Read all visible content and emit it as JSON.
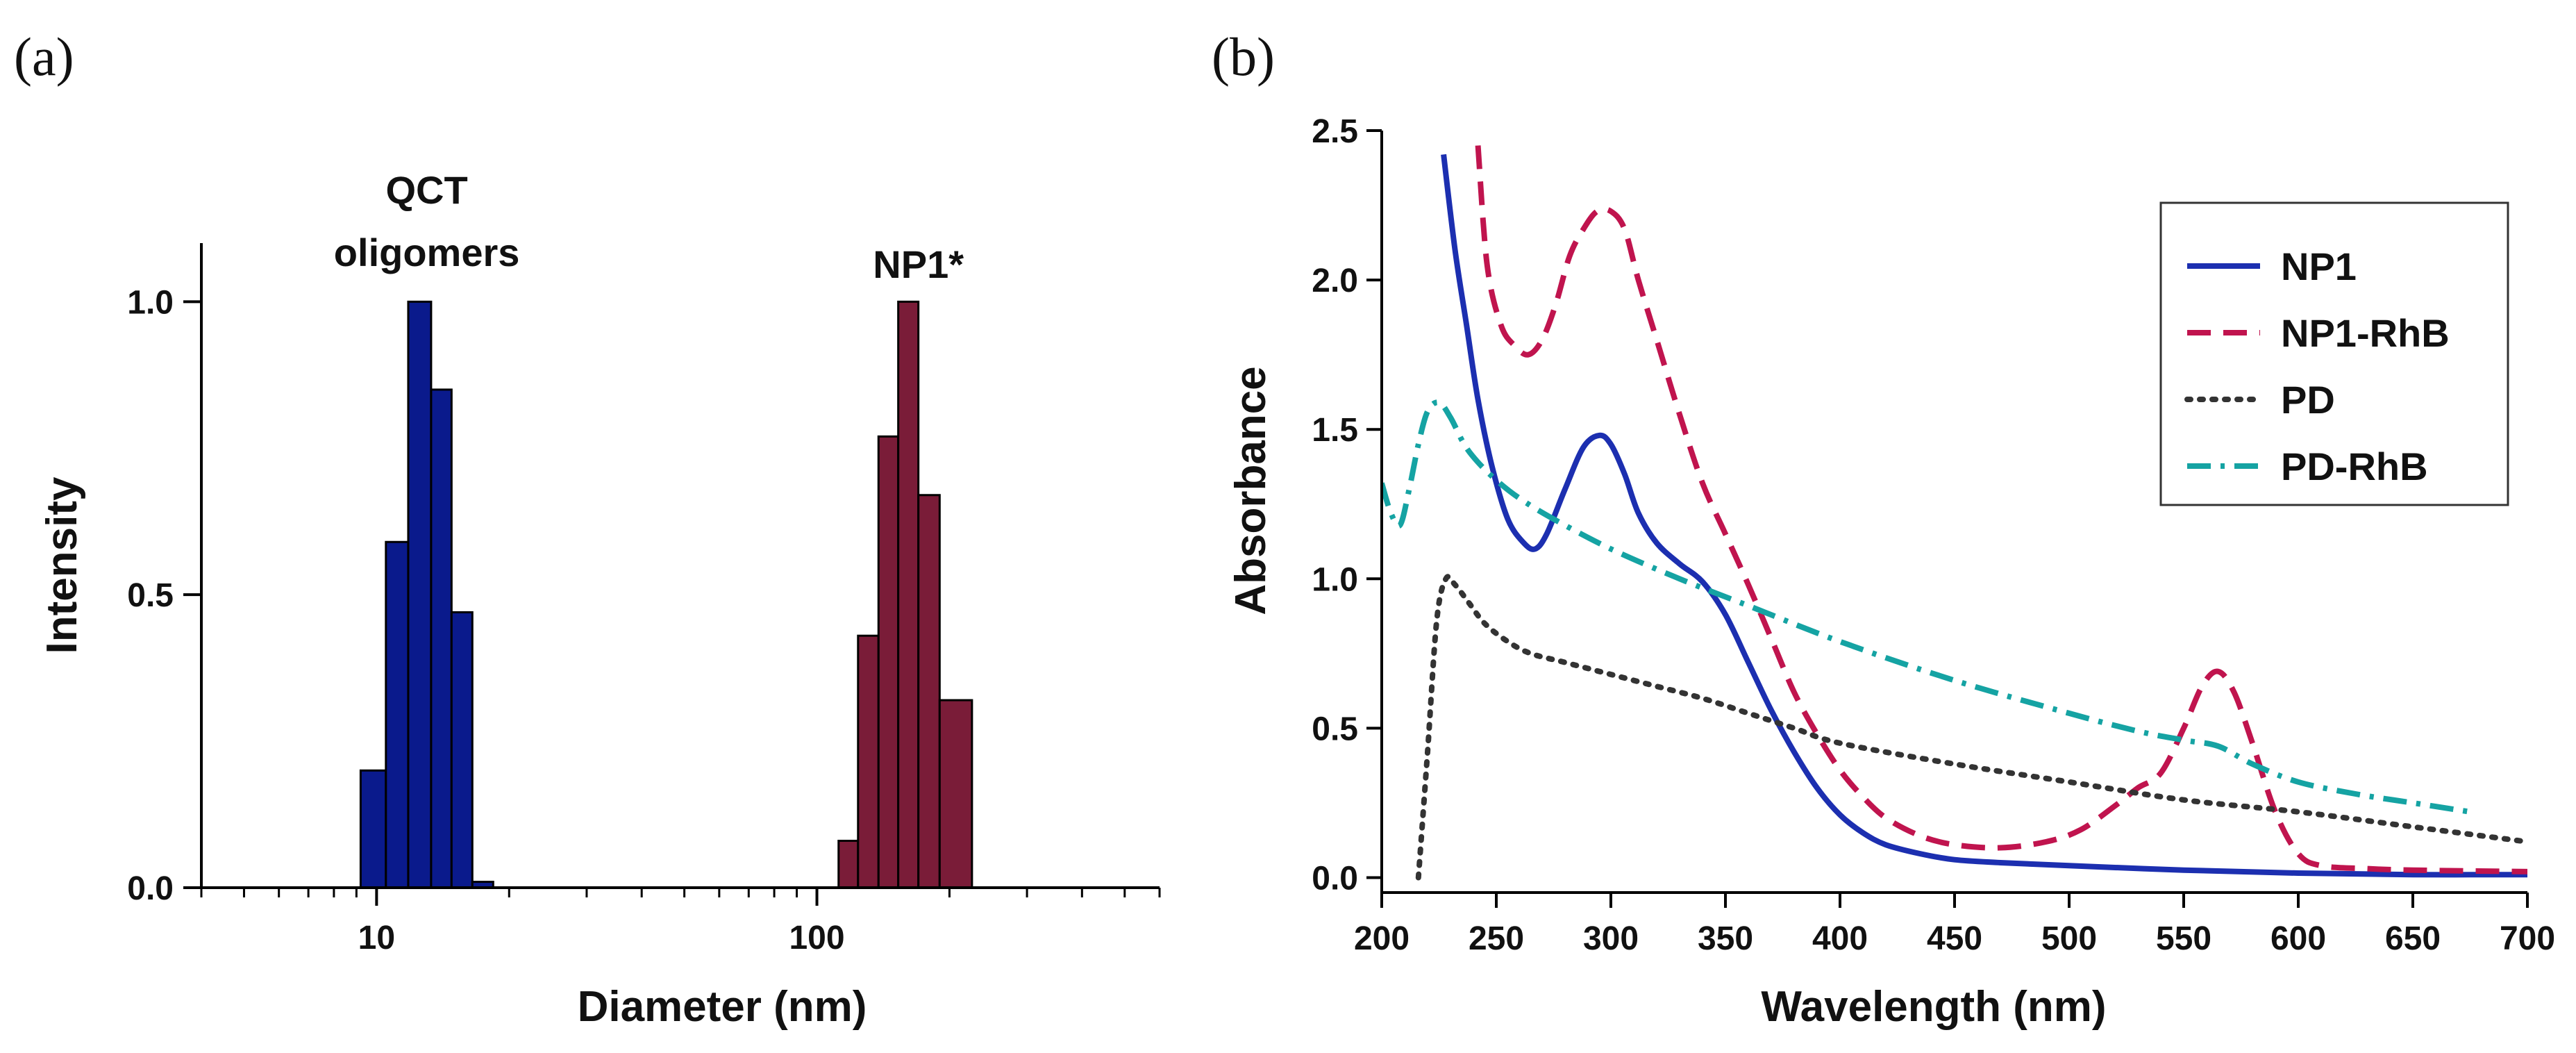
{
  "figure": {
    "panel_a_label": "(a)",
    "panel_b_label": "(b)"
  },
  "chart_data": [
    {
      "id": "a",
      "type": "bar",
      "xscale": "log",
      "xlabel": "Diameter (nm)",
      "ylabel": "Intensity",
      "xlim": [
        4,
        600
      ],
      "ylim": [
        0,
        1.1
      ],
      "xticks": [
        {
          "value": 10,
          "label": "10"
        },
        {
          "value": 100,
          "label": "100"
        }
      ],
      "yticks": [
        {
          "value": 0,
          "label": "0.0"
        },
        {
          "value": 0.5,
          "label": "0.5"
        },
        {
          "value": 1.0,
          "label": "1.0"
        }
      ],
      "annotations": [
        {
          "lines": [
            "QCT",
            "oligomers"
          ],
          "x": 13
        },
        {
          "lines": [
            "NP1*"
          ],
          "x": 170
        }
      ],
      "series": [
        {
          "name": "QCT oligomers",
          "color": "#0a1a8c",
          "bins": [
            {
              "from": 9.2,
              "to": 10.5,
              "value": 0.2
            },
            {
              "from": 10.5,
              "to": 11.8,
              "value": 0.59
            },
            {
              "from": 11.8,
              "to": 13.3,
              "value": 1.0
            },
            {
              "from": 13.3,
              "to": 14.8,
              "value": 0.85
            },
            {
              "from": 14.8,
              "to": 16.5,
              "value": 0.47
            },
            {
              "from": 16.5,
              "to": 18.4,
              "value": 0.01
            }
          ]
        },
        {
          "name": "NP1*",
          "color": "#7a1c38",
          "bins": [
            {
              "from": 112,
              "to": 124,
              "value": 0.08
            },
            {
              "from": 124,
              "to": 138,
              "value": 0.43
            },
            {
              "from": 138,
              "to": 153,
              "value": 0.77
            },
            {
              "from": 153,
              "to": 170,
              "value": 1.0
            },
            {
              "from": 170,
              "to": 190,
              "value": 0.67
            },
            {
              "from": 190,
              "to": 225,
              "value": 0.32
            }
          ]
        }
      ]
    },
    {
      "id": "b",
      "type": "line",
      "xlabel": "Wavelength (nm)",
      "ylabel": "Absorbance",
      "xlim": [
        200,
        700
      ],
      "ylim": [
        -0.05,
        2.5
      ],
      "xticks": [
        200,
        250,
        300,
        350,
        400,
        450,
        500,
        550,
        600,
        650,
        700
      ],
      "yticks": [
        {
          "value": 0,
          "label": "0.0"
        },
        {
          "value": 0.5,
          "label": "0.5"
        },
        {
          "value": 1.0,
          "label": "1.0"
        },
        {
          "value": 1.5,
          "label": "1.5"
        },
        {
          "value": 2.0,
          "label": "2.0"
        },
        {
          "value": 2.5,
          "label": "2.5"
        }
      ],
      "legend_position": "top-right",
      "series": [
        {
          "name": "NP1",
          "color": "#1c2fb0",
          "dash": "solid",
          "x": [
            227,
            232,
            237,
            242,
            248,
            255,
            262,
            267,
            272,
            280,
            288,
            295,
            300,
            306,
            312,
            320,
            330,
            340,
            350,
            360,
            370,
            380,
            390,
            400,
            410,
            420,
            435,
            450,
            470,
            500,
            550,
            600,
            650,
            700
          ],
          "y": [
            2.42,
            2.1,
            1.85,
            1.6,
            1.38,
            1.2,
            1.12,
            1.1,
            1.15,
            1.3,
            1.44,
            1.48,
            1.45,
            1.35,
            1.22,
            1.12,
            1.05,
            0.99,
            0.88,
            0.72,
            0.56,
            0.42,
            0.3,
            0.21,
            0.15,
            0.11,
            0.08,
            0.06,
            0.05,
            0.04,
            0.025,
            0.015,
            0.01,
            0.01
          ]
        },
        {
          "name": "NP1-RhB",
          "color": "#c0144e",
          "dash": "dashed",
          "x": [
            242,
            246,
            252,
            258,
            264,
            270,
            276,
            282,
            288,
            294,
            300,
            306,
            312,
            320,
            330,
            340,
            350,
            360,
            370,
            380,
            390,
            400,
            410,
            420,
            435,
            450,
            470,
            490,
            505,
            520,
            530,
            540,
            550,
            558,
            565,
            572,
            580,
            590,
            600,
            610,
            630,
            650,
            700
          ],
          "y": [
            2.45,
            2.05,
            1.85,
            1.78,
            1.75,
            1.8,
            1.92,
            2.08,
            2.17,
            2.23,
            2.23,
            2.17,
            2.0,
            1.8,
            1.55,
            1.32,
            1.15,
            0.98,
            0.8,
            0.62,
            0.48,
            0.36,
            0.27,
            0.2,
            0.14,
            0.11,
            0.1,
            0.12,
            0.16,
            0.24,
            0.3,
            0.35,
            0.5,
            0.64,
            0.69,
            0.62,
            0.45,
            0.22,
            0.08,
            0.04,
            0.03,
            0.025,
            0.02
          ]
        },
        {
          "name": "PD",
          "color": "#333333",
          "dash": "dotted",
          "x": [
            216,
            220,
            224,
            228,
            232,
            238,
            245,
            255,
            265,
            280,
            300,
            320,
            340,
            360,
            380,
            400,
            450,
            500,
            550,
            600,
            650,
            700
          ],
          "y": [
            0.0,
            0.42,
            0.86,
            1.0,
            0.98,
            0.92,
            0.85,
            0.79,
            0.75,
            0.72,
            0.68,
            0.64,
            0.6,
            0.55,
            0.5,
            0.45,
            0.38,
            0.32,
            0.26,
            0.22,
            0.17,
            0.12
          ]
        },
        {
          "name": "PD-RhB",
          "color": "#15a3a3",
          "dash": "dashdot",
          "x": [
            200,
            204,
            208,
            212,
            216,
            220,
            225,
            230,
            236,
            242,
            250,
            260,
            275,
            300,
            330,
            360,
            400,
            450,
            500,
            530,
            550,
            565,
            580,
            600,
            625,
            650,
            675
          ],
          "y": [
            1.32,
            1.22,
            1.18,
            1.3,
            1.45,
            1.56,
            1.59,
            1.54,
            1.45,
            1.39,
            1.33,
            1.27,
            1.2,
            1.1,
            1.0,
            0.91,
            0.79,
            0.66,
            0.55,
            0.49,
            0.46,
            0.44,
            0.38,
            0.32,
            0.28,
            0.25,
            0.22
          ]
        }
      ]
    }
  ]
}
